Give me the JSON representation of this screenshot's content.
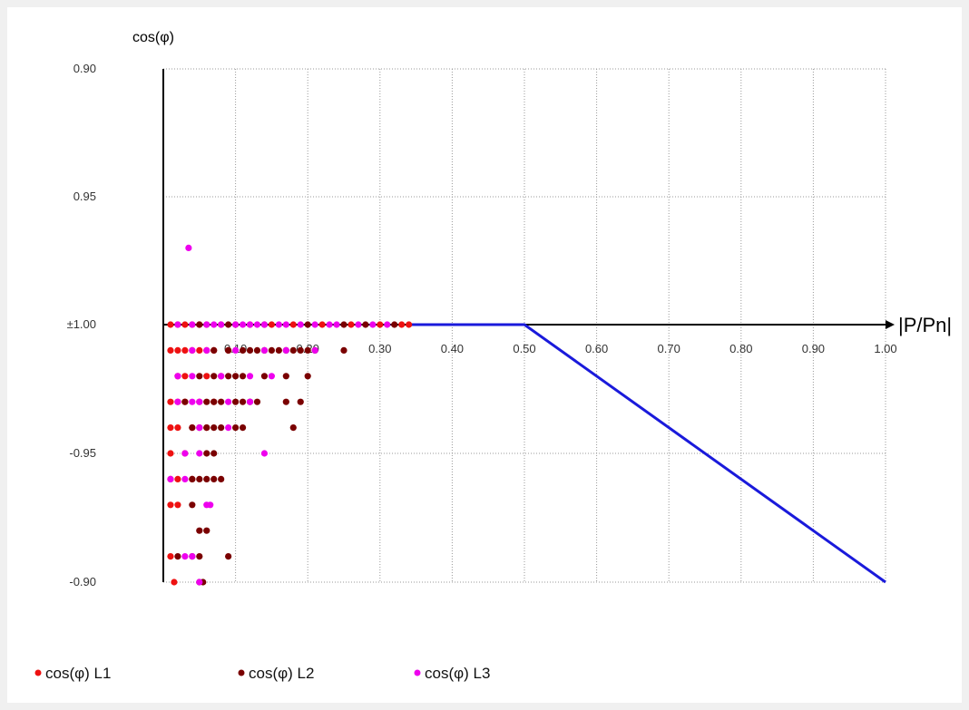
{
  "chart_data": {
    "type": "scatter",
    "ylabel": "cos(φ)",
    "xlabel": "|P/Pn|",
    "xlim": [
      0,
      1.0
    ],
    "x_ticks": [
      "0.10",
      "0.20",
      "0.30",
      "0.40",
      "0.50",
      "0.60",
      "0.70",
      "0.80",
      "0.90",
      "1.00"
    ],
    "y_ticks": [
      "0.90",
      "0.95",
      "±1.00",
      "-0.95",
      "-0.90"
    ],
    "grid": true,
    "legend_position": "bottom",
    "reference_line": {
      "name": "",
      "color": "#1a1adb",
      "points": [
        [
          0.34,
          1.0
        ],
        [
          0.5,
          1.0
        ],
        [
          1.0,
          -0.9
        ]
      ]
    },
    "series": [
      {
        "name": "cos(φ) L1",
        "color": "#ee1111",
        "points": [
          [
            0.01,
            1.0
          ],
          [
            0.02,
            1.0
          ],
          [
            0.03,
            1.0
          ],
          [
            0.04,
            1.0
          ],
          [
            0.05,
            1.0
          ],
          [
            0.06,
            1.0
          ],
          [
            0.08,
            1.0
          ],
          [
            0.1,
            1.0
          ],
          [
            0.12,
            1.0
          ],
          [
            0.15,
            1.0
          ],
          [
            0.18,
            1.0
          ],
          [
            0.22,
            1.0
          ],
          [
            0.26,
            1.0
          ],
          [
            0.3,
            1.0
          ],
          [
            0.33,
            1.0
          ],
          [
            0.34,
            1.0
          ],
          [
            0.01,
            -0.99
          ],
          [
            0.02,
            -0.99
          ],
          [
            0.03,
            -0.99
          ],
          [
            0.04,
            -0.99
          ],
          [
            0.05,
            -0.99
          ],
          [
            0.06,
            -0.99
          ],
          [
            0.07,
            -0.99
          ],
          [
            0.09,
            -0.99
          ],
          [
            0.02,
            -0.98
          ],
          [
            0.03,
            -0.98
          ],
          [
            0.06,
            -0.98
          ],
          [
            0.08,
            -0.98
          ],
          [
            0.01,
            -0.97
          ],
          [
            0.02,
            -0.97
          ],
          [
            0.03,
            -0.97
          ],
          [
            0.05,
            -0.97
          ],
          [
            0.07,
            -0.97
          ],
          [
            0.01,
            -0.96
          ],
          [
            0.02,
            -0.96
          ],
          [
            0.04,
            -0.96
          ],
          [
            0.06,
            -0.96
          ],
          [
            0.01,
            -0.95
          ],
          [
            0.03,
            -0.95
          ],
          [
            0.01,
            -0.94
          ],
          [
            0.02,
            -0.94
          ],
          [
            0.04,
            -0.94
          ],
          [
            0.01,
            -0.93
          ],
          [
            0.02,
            -0.93
          ],
          [
            0.01,
            -0.91
          ],
          [
            0.015,
            -0.9
          ]
        ]
      },
      {
        "name": "cos(φ) L2",
        "color": "#7a0000",
        "points": [
          [
            0.05,
            1.0
          ],
          [
            0.09,
            1.0
          ],
          [
            0.14,
            1.0
          ],
          [
            0.2,
            1.0
          ],
          [
            0.25,
            1.0
          ],
          [
            0.28,
            1.0
          ],
          [
            0.32,
            1.0
          ],
          [
            0.07,
            -0.99
          ],
          [
            0.09,
            -0.99
          ],
          [
            0.11,
            -0.99
          ],
          [
            0.12,
            -0.99
          ],
          [
            0.13,
            -0.99
          ],
          [
            0.14,
            -0.99
          ],
          [
            0.15,
            -0.99
          ],
          [
            0.16,
            -0.99
          ],
          [
            0.17,
            -0.99
          ],
          [
            0.18,
            -0.99
          ],
          [
            0.19,
            -0.99
          ],
          [
            0.2,
            -0.99
          ],
          [
            0.21,
            -0.99
          ],
          [
            0.25,
            -0.99
          ],
          [
            0.05,
            -0.98
          ],
          [
            0.07,
            -0.98
          ],
          [
            0.09,
            -0.98
          ],
          [
            0.1,
            -0.98
          ],
          [
            0.11,
            -0.98
          ],
          [
            0.14,
            -0.98
          ],
          [
            0.17,
            -0.98
          ],
          [
            0.2,
            -0.98
          ],
          [
            0.03,
            -0.97
          ],
          [
            0.06,
            -0.97
          ],
          [
            0.07,
            -0.97
          ],
          [
            0.08,
            -0.97
          ],
          [
            0.1,
            -0.97
          ],
          [
            0.11,
            -0.97
          ],
          [
            0.12,
            -0.97
          ],
          [
            0.13,
            -0.97
          ],
          [
            0.17,
            -0.97
          ],
          [
            0.19,
            -0.97
          ],
          [
            0.04,
            -0.96
          ],
          [
            0.05,
            -0.96
          ],
          [
            0.06,
            -0.96
          ],
          [
            0.07,
            -0.96
          ],
          [
            0.08,
            -0.96
          ],
          [
            0.1,
            -0.96
          ],
          [
            0.11,
            -0.96
          ],
          [
            0.18,
            -0.96
          ],
          [
            0.06,
            -0.95
          ],
          [
            0.07,
            -0.95
          ],
          [
            0.04,
            -0.94
          ],
          [
            0.05,
            -0.94
          ],
          [
            0.06,
            -0.94
          ],
          [
            0.07,
            -0.94
          ],
          [
            0.08,
            -0.94
          ],
          [
            0.04,
            -0.93
          ],
          [
            0.05,
            -0.92
          ],
          [
            0.06,
            -0.92
          ],
          [
            0.02,
            -0.91
          ],
          [
            0.04,
            -0.91
          ],
          [
            0.05,
            -0.91
          ],
          [
            0.09,
            -0.91
          ],
          [
            0.05,
            -0.9
          ],
          [
            0.055,
            -0.9
          ]
        ]
      },
      {
        "name": "cos(φ) L3",
        "color": "#ee00ee",
        "points": [
          [
            0.035,
            0.97
          ],
          [
            0.02,
            1.0
          ],
          [
            0.04,
            1.0
          ],
          [
            0.06,
            1.0
          ],
          [
            0.07,
            1.0
          ],
          [
            0.08,
            1.0
          ],
          [
            0.1,
            1.0
          ],
          [
            0.11,
            1.0
          ],
          [
            0.12,
            1.0
          ],
          [
            0.13,
            1.0
          ],
          [
            0.14,
            1.0
          ],
          [
            0.16,
            1.0
          ],
          [
            0.17,
            1.0
          ],
          [
            0.19,
            1.0
          ],
          [
            0.21,
            1.0
          ],
          [
            0.23,
            1.0
          ],
          [
            0.24,
            1.0
          ],
          [
            0.27,
            1.0
          ],
          [
            0.29,
            1.0
          ],
          [
            0.31,
            1.0
          ],
          [
            0.04,
            -0.99
          ],
          [
            0.06,
            -0.99
          ],
          [
            0.1,
            -0.99
          ],
          [
            0.14,
            -0.99
          ],
          [
            0.17,
            -0.99
          ],
          [
            0.21,
            -0.99
          ],
          [
            0.02,
            -0.98
          ],
          [
            0.04,
            -0.98
          ],
          [
            0.08,
            -0.98
          ],
          [
            0.12,
            -0.98
          ],
          [
            0.15,
            -0.98
          ],
          [
            0.02,
            -0.97
          ],
          [
            0.04,
            -0.97
          ],
          [
            0.05,
            -0.97
          ],
          [
            0.09,
            -0.97
          ],
          [
            0.12,
            -0.97
          ],
          [
            0.05,
            -0.96
          ],
          [
            0.09,
            -0.96
          ],
          [
            0.03,
            -0.95
          ],
          [
            0.05,
            -0.95
          ],
          [
            0.14,
            -0.95
          ],
          [
            0.01,
            -0.94
          ],
          [
            0.03,
            -0.94
          ],
          [
            0.06,
            -0.93
          ],
          [
            0.065,
            -0.93
          ],
          [
            0.03,
            -0.91
          ],
          [
            0.04,
            -0.91
          ],
          [
            0.05,
            -0.9
          ]
        ]
      }
    ]
  }
}
